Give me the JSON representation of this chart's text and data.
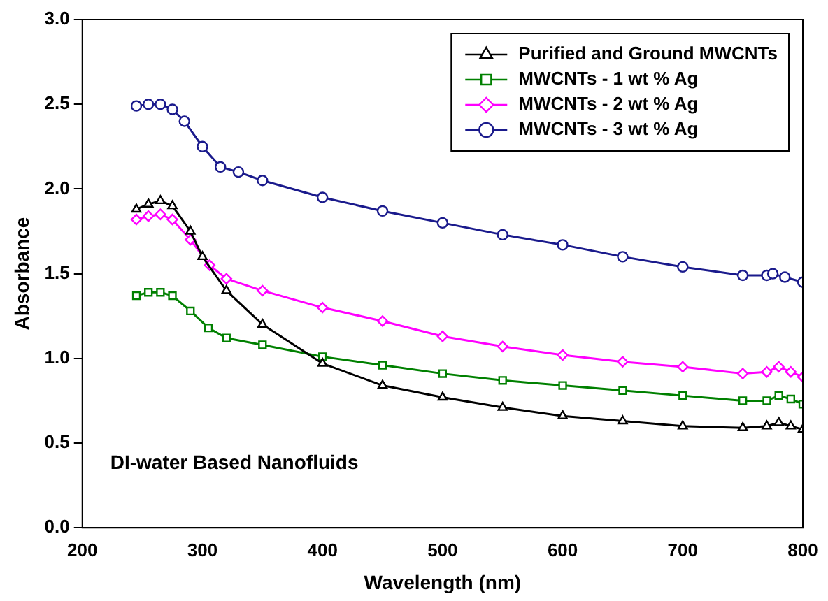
{
  "chart_data": {
    "type": "line",
    "xlabel": "Wavelength (nm)",
    "ylabel": "Absorbance",
    "annotations": [
      "DI-water Based Nanofluids"
    ],
    "xlim": [
      200,
      800
    ],
    "xticks": [
      200,
      300,
      400,
      500,
      600,
      700,
      800
    ],
    "ylim": [
      0,
      3
    ],
    "yticks": [
      {
        "value": 0,
        "label": "0.0"
      },
      {
        "value": 0.5,
        "label": "0.5"
      },
      {
        "value": 1,
        "label": "1.0"
      },
      {
        "value": 1.5,
        "label": "1.5"
      },
      {
        "value": 2,
        "label": "2.0"
      },
      {
        "value": 2.5,
        "label": "2.5"
      },
      {
        "value": 3,
        "label": "3.0"
      }
    ],
    "grid": false,
    "legend": "top right",
    "series": [
      {
        "name": "Purified and Ground MWCNTs",
        "color": "#000000",
        "marker": "triangle",
        "x": [
          245,
          255,
          265,
          275,
          290,
          300,
          320,
          350,
          400,
          450,
          500,
          550,
          600,
          650,
          700,
          750,
          770,
          780,
          790,
          800
        ],
        "values": [
          1.88,
          1.91,
          1.93,
          1.9,
          1.75,
          1.6,
          1.4,
          1.2,
          0.97,
          0.84,
          0.77,
          0.71,
          0.66,
          0.63,
          0.6,
          0.59,
          0.6,
          0.62,
          0.6,
          0.58
        ]
      },
      {
        "name": "MWCNTs - 1 wt % Ag",
        "color": "#008000",
        "marker": "square",
        "x": [
          245,
          255,
          265,
          275,
          290,
          305,
          320,
          350,
          400,
          450,
          500,
          550,
          600,
          650,
          700,
          750,
          770,
          780,
          790,
          800
        ],
        "values": [
          1.37,
          1.39,
          1.39,
          1.37,
          1.28,
          1.18,
          1.12,
          1.08,
          1.01,
          0.96,
          0.91,
          0.87,
          0.84,
          0.81,
          0.78,
          0.75,
          0.75,
          0.78,
          0.76,
          0.73
        ]
      },
      {
        "name": "MWCNTs - 2 wt % Ag",
        "color": "#ff00ff",
        "marker": "diamond",
        "x": [
          245,
          255,
          265,
          275,
          290,
          306,
          320,
          350,
          400,
          450,
          500,
          550,
          600,
          650,
          700,
          750,
          770,
          780,
          790,
          800
        ],
        "values": [
          1.82,
          1.84,
          1.85,
          1.82,
          1.7,
          1.55,
          1.47,
          1.4,
          1.3,
          1.22,
          1.13,
          1.07,
          1.02,
          0.98,
          0.95,
          0.91,
          0.92,
          0.95,
          0.92,
          0.89
        ]
      },
      {
        "name": "MWCNTs - 3 wt % Ag",
        "color": "#1a1a8c",
        "marker": "circle",
        "x": [
          245,
          255,
          265,
          275,
          285,
          300,
          315,
          330,
          350,
          400,
          450,
          500,
          550,
          600,
          650,
          700,
          750,
          770,
          775,
          785,
          800
        ],
        "values": [
          2.49,
          2.5,
          2.5,
          2.47,
          2.4,
          2.25,
          2.13,
          2.1,
          2.05,
          1.95,
          1.87,
          1.8,
          1.73,
          1.67,
          1.6,
          1.54,
          1.49,
          1.49,
          1.5,
          1.48,
          1.45
        ]
      }
    ]
  }
}
